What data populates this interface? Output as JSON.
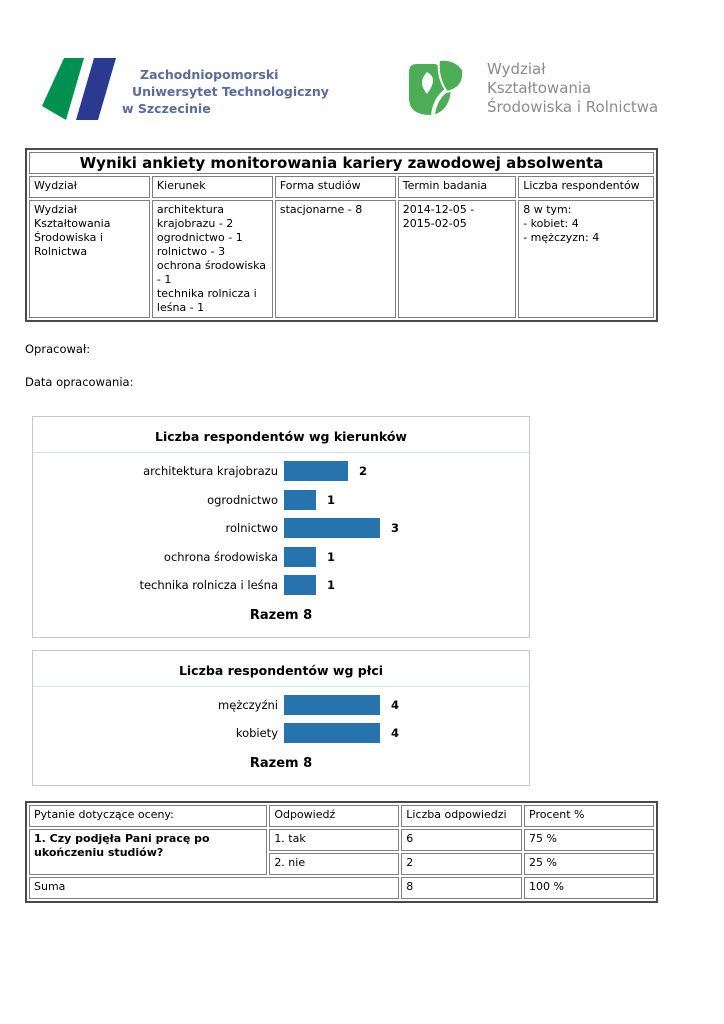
{
  "colors": {
    "bar_blue": "#2673AE",
    "zut_green": "#009150",
    "zut_navy": "#2B3990",
    "zut_text_blue": "#5A6B9C",
    "wksir_green": "#4BAE56",
    "wksir_text_gray": "#8B8B8B",
    "panel_border": "#C9C9C9",
    "table_border": "#4A4A4A"
  },
  "header": {
    "zut_logo": {
      "line1": "Zachodniopomorski",
      "line2": "Uniwersytet Technologiczny",
      "line3": "w Szczecinie"
    },
    "wksir_logo": {
      "line1": "Wydział",
      "line2": "Kształtowania",
      "line3": "Środowiska i Rolnictwa"
    }
  },
  "info_table": {
    "title": "Wyniki ankiety monitorowania kariery zawodowej absolwenta",
    "columns": [
      "Wydział",
      "Kierunek",
      "Forma studiów",
      "Termin badania",
      "Liczba respondentów"
    ],
    "row": {
      "wydzial": "Wydział Kształtowania Środowiska i Rolnictwa",
      "kierunek": "architektura krajobrazu - 2\nogrodnictwo - 1\nrolnictwo - 3\nochrona środowiska - 1\ntechnika rolnicza i leśna - 1",
      "forma": "stacjonarne - 8",
      "termin": "2014-12-05 -\n2015-02-05",
      "liczba": "8 w tym:\n- kobiet: 4\n- mężczyzn: 4"
    }
  },
  "meta": {
    "opracowal": "Opracował:",
    "data_opracowania": "Data opracowania:"
  },
  "chart_data": [
    {
      "type": "bar",
      "orientation": "horizontal",
      "title": "Liczba respondentów wg kierunków",
      "categories": [
        "architektura krajobrazu",
        "ogrodnictwo",
        "rolnictwo",
        "ochrona środowiska",
        "technika rolnicza i leśna"
      ],
      "values": [
        2,
        1,
        3,
        1,
        1
      ],
      "footer": "Razem 8",
      "bar_color": "#2673AE",
      "xlim": [
        0,
        3
      ],
      "grid": false,
      "data_labels": true
    },
    {
      "type": "bar",
      "orientation": "horizontal",
      "title": "Liczba respondentów wg płci",
      "categories": [
        "mężczyźni",
        "kobiety"
      ],
      "values": [
        4,
        4
      ],
      "footer": "Razem 8",
      "bar_color": "#2673AE",
      "xlim": [
        0,
        4
      ],
      "grid": false,
      "data_labels": true
    }
  ],
  "question_table": {
    "columns": [
      "Pytanie dotyczące oceny:",
      "Odpowiedź",
      "Liczba odpowiedzi",
      "Procent %"
    ],
    "question": "1. Czy podjęła Pani pracę po ukończeniu studiów?",
    "answers": [
      {
        "label": "1. tak",
        "count": "6",
        "percent": "75 %"
      },
      {
        "label": "2. nie",
        "count": "2",
        "percent": "25 %"
      }
    ],
    "suma_label": "Suma",
    "suma_count": "8",
    "suma_percent": "100 %"
  }
}
